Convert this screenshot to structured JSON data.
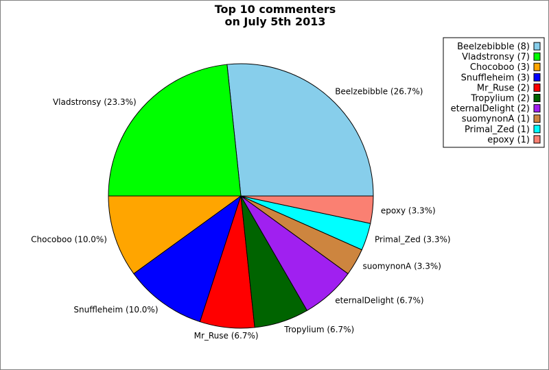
{
  "chart_data": {
    "type": "pie",
    "title": [
      "Top 10 commenters",
      "on July 5th 2013"
    ],
    "slices": [
      {
        "name": "Beelzebibble",
        "value": 8,
        "label": "Beelzebibble (26.7%)",
        "legend": "Beelzebibble (8)",
        "color": "#87CEEB"
      },
      {
        "name": "Vladstronsy",
        "value": 7,
        "label": "Vladstronsy (23.3%)",
        "legend": "Vladstronsy (7)",
        "color": "#00FF00"
      },
      {
        "name": "Chocoboo",
        "value": 3,
        "label": "Chocoboo (10.0%)",
        "legend": "Chocoboo (3)",
        "color": "#FFA500"
      },
      {
        "name": "Snuffleheim",
        "value": 3,
        "label": "Snuffleheim (10.0%)",
        "legend": "Snuffleheim (3)",
        "color": "#0000FF"
      },
      {
        "name": "Mr_Ruse",
        "value": 2,
        "label": "Mr_Ruse (6.7%)",
        "legend": "Mr_Ruse (2)",
        "color": "#FF0000"
      },
      {
        "name": "Tropylium",
        "value": 2,
        "label": "Tropylium (6.7%)",
        "legend": "Tropylium (2)",
        "color": "#006400"
      },
      {
        "name": "eternalDelight",
        "value": 2,
        "label": "eternalDelight (6.7%)",
        "legend": "eternalDelight (2)",
        "color": "#A020F0"
      },
      {
        "name": "suomynonA",
        "value": 1,
        "label": "suomynonA (3.3%)",
        "legend": "suomynonA (1)",
        "color": "#CD853F"
      },
      {
        "name": "Primal_Zed",
        "value": 1,
        "label": "Primal_Zed (3.3%)",
        "legend": "Primal_Zed (1)",
        "color": "#00FFFF"
      },
      {
        "name": "epoxy",
        "value": 1,
        "label": "epoxy (3.3%)",
        "legend": "epoxy (1)",
        "color": "#FA8072"
      }
    ],
    "legend_position": "top-right",
    "start": "3 o'clock",
    "direction": "counter-clockwise"
  }
}
